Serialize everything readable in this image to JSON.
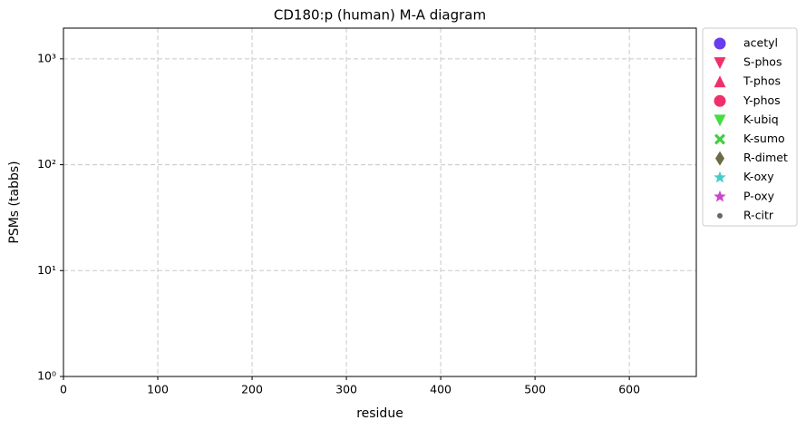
{
  "chart_data": {
    "type": "scatter",
    "title": "CD180:p (human) M-A diagram",
    "xlabel": "residue",
    "ylabel": "PSMs (tabbs)",
    "xlim": [
      0,
      671
    ],
    "xticks": [
      0,
      100,
      200,
      300,
      400,
      500,
      600
    ],
    "ylim": [
      1,
      1950
    ],
    "yscale": "log",
    "yticks": [
      {
        "value": 1,
        "label": "10⁰"
      },
      {
        "value": 10,
        "label": "10¹"
      },
      {
        "value": 100,
        "label": "10²"
      },
      {
        "value": 1000,
        "label": "10³"
      }
    ],
    "grid": true,
    "legend": "outside right",
    "series": [
      {
        "name": "acetyl",
        "color": "#6a3cf0",
        "marker": "circle",
        "x": [],
        "values": []
      },
      {
        "name": "S-phos",
        "color": "#f0306a",
        "marker": "triangle-down",
        "x": [],
        "values": []
      },
      {
        "name": "T-phos",
        "color": "#f0306a",
        "marker": "triangle-up",
        "x": [],
        "values": []
      },
      {
        "name": "Y-phos",
        "color": "#f0306a",
        "marker": "circle",
        "x": [],
        "values": []
      },
      {
        "name": "K-ubiq",
        "color": "#44dd44",
        "marker": "triangle-down",
        "x": [],
        "values": []
      },
      {
        "name": "K-sumo",
        "color": "#44cc44",
        "marker": "x",
        "x": [],
        "values": []
      },
      {
        "name": "R-dimet",
        "color": "#6b6b45",
        "marker": "diamond",
        "x": [],
        "values": []
      },
      {
        "name": "K-oxy",
        "color": "#44cccc",
        "marker": "star",
        "x": [],
        "values": []
      },
      {
        "name": "P-oxy",
        "color": "#cc44cc",
        "marker": "star",
        "x": [],
        "values": []
      },
      {
        "name": "R-citr",
        "color": "#666666",
        "marker": "point",
        "x": [],
        "values": []
      }
    ]
  }
}
